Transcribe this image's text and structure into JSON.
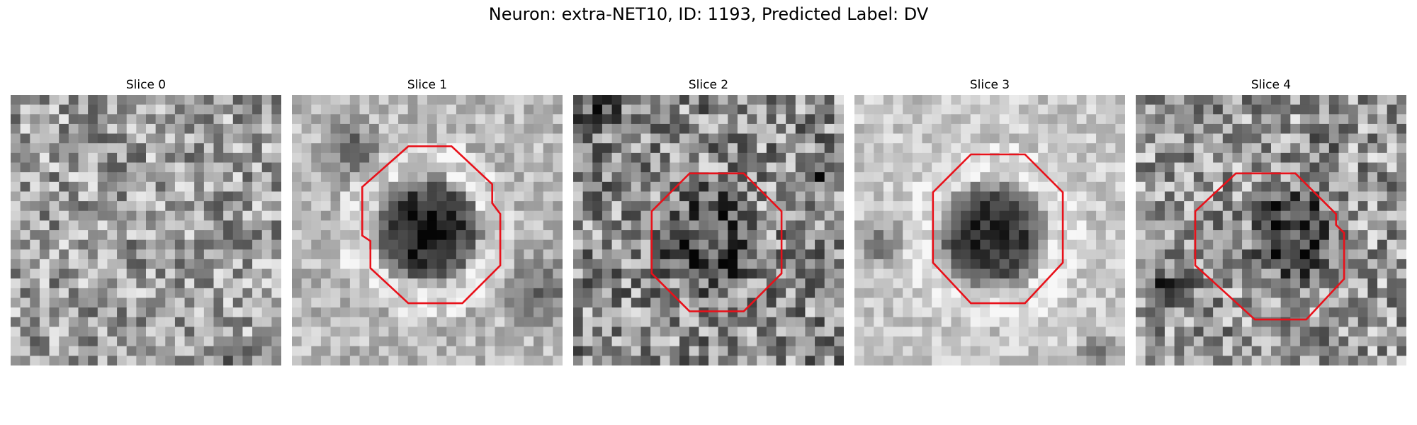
{
  "figure": {
    "suptitle": "Neuron: extra-NET10, ID: 1193, Predicted Label: DV",
    "colormap": "gray",
    "contour_color": "#e8111a",
    "panels": [
      {
        "title": "Slice 0",
        "has_contour": false
      },
      {
        "title": "Slice 1",
        "has_contour": true
      },
      {
        "title": "Slice 2",
        "has_contour": true
      },
      {
        "title": "Slice 3",
        "has_contour": true
      },
      {
        "title": "Slice 4",
        "has_contour": true
      }
    ]
  }
}
